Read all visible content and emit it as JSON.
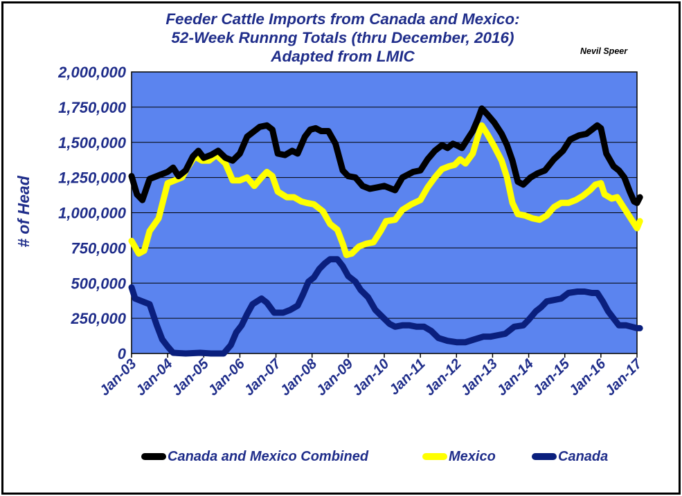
{
  "title_lines": [
    "Feeder Cattle Imports from Canada and Mexico:",
    "52-Week Runnng Totals (thru December, 2016)",
    "Adapted from LMIC"
  ],
  "author": "Nevil Speer",
  "chart_data": {
    "type": "line",
    "title": "Feeder Cattle Imports from Canada and Mexico: 52-Week Runnng Totals (thru December, 2016) Adapted from LMIC",
    "xlabel": "",
    "ylabel": "# of Head",
    "x_unit": "year",
    "x_range": [
      2003.0,
      2017.0
    ],
    "ylim": [
      0,
      2000000
    ],
    "y_ticks": [
      0,
      250000,
      500000,
      750000,
      1000000,
      1250000,
      1500000,
      1750000,
      2000000
    ],
    "y_tick_labels": [
      "0",
      "250,000",
      "500,000",
      "750,000",
      "1,000,000",
      "1,250,000",
      "1,500,000",
      "1,750,000",
      "2,000,000"
    ],
    "x_ticks": [
      2003,
      2004,
      2005,
      2006,
      2007,
      2008,
      2009,
      2010,
      2011,
      2012,
      2013,
      2014,
      2015,
      2016,
      2017
    ],
    "x_tick_labels": [
      "Jan-03",
      "Jan-04",
      "Jan-05",
      "Jan-06",
      "Jan-07",
      "Jan-08",
      "Jan-09",
      "Jan-10",
      "Jan-11",
      "Jan-12",
      "Jan-13",
      "Jan-14",
      "Jan-15",
      "Jan-16",
      "Jan-17"
    ],
    "grid": "horizontal",
    "plot_background": "#5b84ef",
    "legend_position": "bottom",
    "series": [
      {
        "name": "Canada and Mexico Combined",
        "color": "#000000",
        "points": [
          [
            2003.0,
            1260000
          ],
          [
            2003.15,
            1130000
          ],
          [
            2003.3,
            1090000
          ],
          [
            2003.5,
            1240000
          ],
          [
            2003.8,
            1270000
          ],
          [
            2004.0,
            1290000
          ],
          [
            2004.15,
            1320000
          ],
          [
            2004.3,
            1260000
          ],
          [
            2004.5,
            1300000
          ],
          [
            2004.7,
            1400000
          ],
          [
            2004.85,
            1440000
          ],
          [
            2005.0,
            1390000
          ],
          [
            2005.2,
            1410000
          ],
          [
            2005.4,
            1440000
          ],
          [
            2005.6,
            1390000
          ],
          [
            2005.8,
            1370000
          ],
          [
            2006.0,
            1420000
          ],
          [
            2006.2,
            1540000
          ],
          [
            2006.4,
            1580000
          ],
          [
            2006.55,
            1610000
          ],
          [
            2006.75,
            1620000
          ],
          [
            2006.9,
            1590000
          ],
          [
            2007.05,
            1420000
          ],
          [
            2007.25,
            1410000
          ],
          [
            2007.45,
            1440000
          ],
          [
            2007.6,
            1420000
          ],
          [
            2007.8,
            1540000
          ],
          [
            2007.95,
            1590000
          ],
          [
            2008.1,
            1600000
          ],
          [
            2008.25,
            1580000
          ],
          [
            2008.45,
            1580000
          ],
          [
            2008.65,
            1490000
          ],
          [
            2008.85,
            1300000
          ],
          [
            2009.0,
            1260000
          ],
          [
            2009.2,
            1250000
          ],
          [
            2009.4,
            1190000
          ],
          [
            2009.6,
            1170000
          ],
          [
            2009.8,
            1180000
          ],
          [
            2010.0,
            1190000
          ],
          [
            2010.2,
            1170000
          ],
          [
            2010.3,
            1160000
          ],
          [
            2010.5,
            1250000
          ],
          [
            2010.8,
            1290000
          ],
          [
            2011.0,
            1300000
          ],
          [
            2011.2,
            1380000
          ],
          [
            2011.4,
            1440000
          ],
          [
            2011.6,
            1480000
          ],
          [
            2011.75,
            1460000
          ],
          [
            2011.9,
            1490000
          ],
          [
            2012.0,
            1480000
          ],
          [
            2012.15,
            1460000
          ],
          [
            2012.3,
            1520000
          ],
          [
            2012.45,
            1580000
          ],
          [
            2012.6,
            1670000
          ],
          [
            2012.7,
            1740000
          ],
          [
            2012.85,
            1700000
          ],
          [
            2013.05,
            1640000
          ],
          [
            2013.25,
            1560000
          ],
          [
            2013.4,
            1480000
          ],
          [
            2013.55,
            1370000
          ],
          [
            2013.7,
            1220000
          ],
          [
            2013.85,
            1200000
          ],
          [
            2014.05,
            1250000
          ],
          [
            2014.25,
            1280000
          ],
          [
            2014.45,
            1300000
          ],
          [
            2014.7,
            1380000
          ],
          [
            2014.95,
            1440000
          ],
          [
            2015.15,
            1520000
          ],
          [
            2015.4,
            1550000
          ],
          [
            2015.6,
            1560000
          ],
          [
            2015.75,
            1590000
          ],
          [
            2015.9,
            1620000
          ],
          [
            2016.0,
            1600000
          ],
          [
            2016.15,
            1420000
          ],
          [
            2016.35,
            1330000
          ],
          [
            2016.5,
            1300000
          ],
          [
            2016.65,
            1250000
          ],
          [
            2016.8,
            1150000
          ],
          [
            2016.92,
            1080000
          ],
          [
            2017.0,
            1070000
          ],
          [
            2017.08,
            1110000
          ]
        ]
      },
      {
        "name": "Mexico",
        "color": "#ffff00",
        "points": [
          [
            2003.0,
            800000
          ],
          [
            2003.2,
            710000
          ],
          [
            2003.35,
            730000
          ],
          [
            2003.5,
            870000
          ],
          [
            2003.75,
            960000
          ],
          [
            2004.0,
            1210000
          ],
          [
            2004.2,
            1230000
          ],
          [
            2004.4,
            1250000
          ],
          [
            2004.55,
            1320000
          ],
          [
            2004.75,
            1400000
          ],
          [
            2004.95,
            1370000
          ],
          [
            2005.15,
            1370000
          ],
          [
            2005.35,
            1410000
          ],
          [
            2005.6,
            1350000
          ],
          [
            2005.8,
            1230000
          ],
          [
            2006.0,
            1230000
          ],
          [
            2006.2,
            1250000
          ],
          [
            2006.4,
            1190000
          ],
          [
            2006.6,
            1250000
          ],
          [
            2006.75,
            1290000
          ],
          [
            2006.9,
            1260000
          ],
          [
            2007.05,
            1150000
          ],
          [
            2007.3,
            1110000
          ],
          [
            2007.5,
            1110000
          ],
          [
            2007.7,
            1080000
          ],
          [
            2007.85,
            1070000
          ],
          [
            2008.05,
            1060000
          ],
          [
            2008.3,
            1010000
          ],
          [
            2008.5,
            920000
          ],
          [
            2008.7,
            880000
          ],
          [
            2008.85,
            780000
          ],
          [
            2008.95,
            700000
          ],
          [
            2009.1,
            710000
          ],
          [
            2009.3,
            760000
          ],
          [
            2009.5,
            780000
          ],
          [
            2009.7,
            790000
          ],
          [
            2009.9,
            870000
          ],
          [
            2010.05,
            940000
          ],
          [
            2010.3,
            950000
          ],
          [
            2010.5,
            1020000
          ],
          [
            2010.75,
            1060000
          ],
          [
            2011.0,
            1090000
          ],
          [
            2011.2,
            1180000
          ],
          [
            2011.4,
            1250000
          ],
          [
            2011.6,
            1310000
          ],
          [
            2011.8,
            1330000
          ],
          [
            2011.95,
            1340000
          ],
          [
            2012.1,
            1380000
          ],
          [
            2012.25,
            1350000
          ],
          [
            2012.45,
            1420000
          ],
          [
            2012.6,
            1550000
          ],
          [
            2012.7,
            1620000
          ],
          [
            2012.85,
            1560000
          ],
          [
            2013.05,
            1470000
          ],
          [
            2013.25,
            1370000
          ],
          [
            2013.4,
            1250000
          ],
          [
            2013.55,
            1070000
          ],
          [
            2013.7,
            990000
          ],
          [
            2013.9,
            980000
          ],
          [
            2014.1,
            960000
          ],
          [
            2014.3,
            950000
          ],
          [
            2014.5,
            980000
          ],
          [
            2014.7,
            1040000
          ],
          [
            2014.9,
            1070000
          ],
          [
            2015.1,
            1070000
          ],
          [
            2015.3,
            1090000
          ],
          [
            2015.5,
            1120000
          ],
          [
            2015.7,
            1160000
          ],
          [
            2015.85,
            1200000
          ],
          [
            2016.0,
            1210000
          ],
          [
            2016.1,
            1130000
          ],
          [
            2016.3,
            1100000
          ],
          [
            2016.45,
            1110000
          ],
          [
            2016.6,
            1050000
          ],
          [
            2016.75,
            990000
          ],
          [
            2016.9,
            930000
          ],
          [
            2017.0,
            890000
          ],
          [
            2017.08,
            940000
          ]
        ]
      },
      {
        "name": "Canada",
        "color": "#0a1f7d",
        "points": [
          [
            2003.0,
            470000
          ],
          [
            2003.1,
            390000
          ],
          [
            2003.3,
            370000
          ],
          [
            2003.5,
            350000
          ],
          [
            2003.7,
            200000
          ],
          [
            2003.85,
            100000
          ],
          [
            2004.0,
            50000
          ],
          [
            2004.15,
            5000
          ],
          [
            2004.5,
            0
          ],
          [
            2004.9,
            5000
          ],
          [
            2005.2,
            0
          ],
          [
            2005.55,
            0
          ],
          [
            2005.75,
            60000
          ],
          [
            2005.9,
            150000
          ],
          [
            2006.05,
            200000
          ],
          [
            2006.2,
            280000
          ],
          [
            2006.35,
            350000
          ],
          [
            2006.6,
            390000
          ],
          [
            2006.75,
            360000
          ],
          [
            2006.95,
            290000
          ],
          [
            2007.2,
            290000
          ],
          [
            2007.4,
            310000
          ],
          [
            2007.6,
            340000
          ],
          [
            2007.75,
            420000
          ],
          [
            2007.9,
            510000
          ],
          [
            2008.05,
            540000
          ],
          [
            2008.2,
            600000
          ],
          [
            2008.35,
            640000
          ],
          [
            2008.5,
            670000
          ],
          [
            2008.7,
            670000
          ],
          [
            2008.85,
            620000
          ],
          [
            2009.0,
            550000
          ],
          [
            2009.2,
            510000
          ],
          [
            2009.35,
            450000
          ],
          [
            2009.55,
            400000
          ],
          [
            2009.75,
            310000
          ],
          [
            2009.95,
            260000
          ],
          [
            2010.15,
            210000
          ],
          [
            2010.3,
            190000
          ],
          [
            2010.5,
            200000
          ],
          [
            2010.7,
            200000
          ],
          [
            2010.9,
            190000
          ],
          [
            2011.1,
            190000
          ],
          [
            2011.3,
            160000
          ],
          [
            2011.5,
            110000
          ],
          [
            2011.75,
            90000
          ],
          [
            2012.0,
            80000
          ],
          [
            2012.25,
            80000
          ],
          [
            2012.5,
            100000
          ],
          [
            2012.75,
            120000
          ],
          [
            2012.95,
            120000
          ],
          [
            2013.15,
            130000
          ],
          [
            2013.35,
            140000
          ],
          [
            2013.6,
            190000
          ],
          [
            2013.85,
            200000
          ],
          [
            2014.0,
            240000
          ],
          [
            2014.2,
            300000
          ],
          [
            2014.35,
            330000
          ],
          [
            2014.5,
            370000
          ],
          [
            2014.7,
            380000
          ],
          [
            2014.9,
            390000
          ],
          [
            2015.1,
            430000
          ],
          [
            2015.35,
            440000
          ],
          [
            2015.55,
            440000
          ],
          [
            2015.75,
            430000
          ],
          [
            2015.9,
            430000
          ],
          [
            2016.05,
            370000
          ],
          [
            2016.2,
            300000
          ],
          [
            2016.35,
            250000
          ],
          [
            2016.5,
            200000
          ],
          [
            2016.7,
            200000
          ],
          [
            2016.85,
            190000
          ],
          [
            2017.0,
            180000
          ],
          [
            2017.08,
            180000
          ]
        ]
      }
    ]
  }
}
